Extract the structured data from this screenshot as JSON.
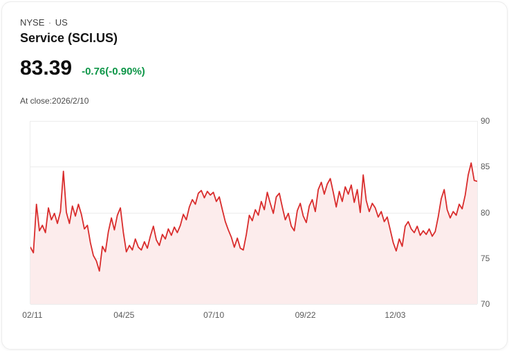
{
  "header": {
    "exchange": "NYSE",
    "separator": "·",
    "region": "US",
    "title": "Service (SCI.US)",
    "price": "83.39",
    "change": "-0.76(-0.90%)",
    "as_of": "At close:2026/2/10"
  },
  "colors": {
    "line": "#d92c2c",
    "fill": "#fcecec",
    "change_text": "#0e9648",
    "grid": "#ececec",
    "axis_label": "#595959"
  },
  "chart_data": {
    "type": "area",
    "title": "Service (SCI.US) closing price",
    "xlabel": "",
    "ylabel": "",
    "ylim": [
      70,
      90
    ],
    "y_ticks": [
      90,
      85,
      80,
      75,
      70
    ],
    "grid": true,
    "legend_position": "none",
    "x_ticks": [
      {
        "label": "02/11",
        "pos": 0.006
      },
      {
        "label": "04/25",
        "pos": 0.211
      },
      {
        "label": "07/10",
        "pos": 0.412
      },
      {
        "label": "09/22",
        "pos": 0.617
      },
      {
        "label": "12/03",
        "pos": 0.818
      }
    ],
    "values": [
      76.2,
      75.6,
      80.9,
      78.0,
      78.6,
      77.8,
      80.5,
      79.2,
      79.9,
      78.8,
      80.1,
      84.5,
      80.0,
      78.8,
      80.7,
      79.6,
      80.9,
      79.8,
      78.2,
      78.6,
      76.7,
      75.3,
      74.7,
      73.6,
      76.3,
      75.7,
      77.9,
      79.4,
      78.1,
      79.7,
      80.5,
      77.8,
      75.7,
      76.4,
      75.9,
      77.1,
      76.2,
      75.9,
      76.8,
      76.1,
      77.4,
      78.5,
      77.0,
      76.4,
      77.6,
      77.1,
      78.2,
      77.5,
      78.4,
      77.8,
      78.6,
      79.8,
      79.2,
      80.6,
      81.4,
      80.9,
      82.1,
      82.4,
      81.6,
      82.3,
      81.9,
      82.2,
      81.2,
      81.7,
      80.3,
      79.0,
      78.1,
      77.3,
      76.2,
      77.2,
      76.1,
      75.9,
      77.6,
      79.7,
      79.1,
      80.3,
      79.7,
      81.2,
      80.3,
      82.2,
      81.0,
      79.9,
      81.7,
      82.1,
      80.6,
      79.2,
      79.9,
      78.5,
      78.0,
      80.2,
      81.0,
      79.6,
      78.9,
      80.7,
      81.4,
      80.1,
      82.5,
      83.3,
      82.0,
      83.1,
      83.7,
      82.2,
      80.6,
      82.3,
      81.2,
      82.8,
      82.0,
      83.0,
      81.1,
      82.5,
      80.0,
      84.1,
      81.3,
      80.1,
      81.0,
      80.5,
      79.5,
      80.1,
      79.0,
      79.5,
      78.1,
      76.7,
      75.8,
      77.1,
      76.3,
      78.5,
      79.0,
      78.2,
      77.8,
      78.5,
      77.5,
      78.0,
      77.6,
      78.2,
      77.4,
      77.9,
      79.5,
      81.5,
      82.5,
      80.3,
      79.4,
      80.1,
      79.7,
      80.9,
      80.4,
      81.9,
      84.1,
      85.4,
      83.5,
      83.4
    ]
  }
}
